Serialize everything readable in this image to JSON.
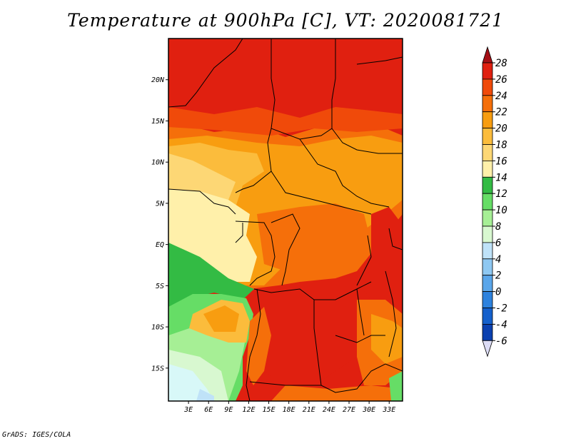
{
  "title": "Temperature at 900hPa [C], VT: 2020081721",
  "credit": "GrADS: IGES/COLA",
  "map": {
    "lon_ticks": [
      "3E",
      "6E",
      "9E",
      "12E",
      "15E",
      "18E",
      "21E",
      "24E",
      "27E",
      "30E",
      "33E"
    ],
    "lat_ticks": [
      "20N",
      "15N",
      "10N",
      "5N",
      "EQ",
      "5S",
      "10S",
      "15S"
    ],
    "lon_range": [
      0,
      35
    ],
    "lat_range": [
      -19,
      25
    ]
  },
  "colorbar": {
    "labels": [
      "28",
      "26",
      "24",
      "22",
      "20",
      "18",
      "16",
      "14",
      "12",
      "10",
      "8",
      "6",
      "4",
      "2",
      "0",
      "-2",
      "-4",
      "-6"
    ],
    "colors": [
      "#a50f15",
      "#e02010",
      "#f04a0a",
      "#f56f0a",
      "#f89d10",
      "#fbbc3c",
      "#fdd775",
      "#fff0aa",
      "#33bb44",
      "#66dd66",
      "#a6ef95",
      "#d8f8d0",
      "#bfe2f8",
      "#8ec8f2",
      "#5aa6ea",
      "#2d82de",
      "#1460cc",
      "#0a40b0",
      "#0a2a90",
      "#0a1a6a",
      "#dcdcf5"
    ]
  }
}
